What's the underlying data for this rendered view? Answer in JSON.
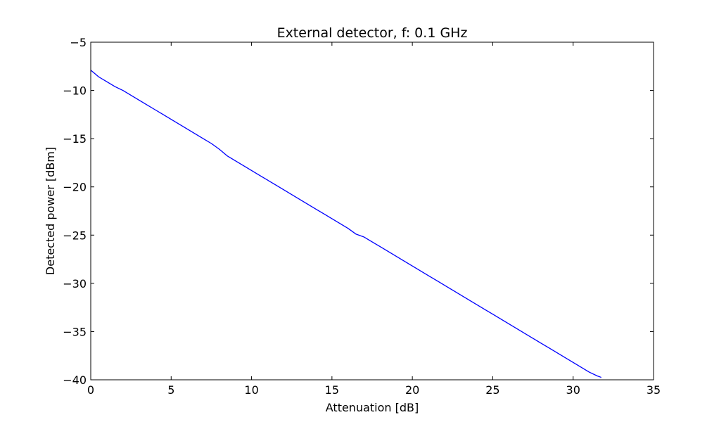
{
  "chart_data": {
    "type": "line",
    "title": "External detector, f: 0.1 GHz",
    "xlabel": "Attenuation [dB]",
    "ylabel": "Detected power [dBm]",
    "xlim": [
      0,
      35
    ],
    "ylim": [
      -40,
      -5
    ],
    "x_ticks": [
      0,
      5,
      10,
      15,
      20,
      25,
      30,
      35
    ],
    "x_tick_labels": [
      "0",
      "5",
      "10",
      "15",
      "20",
      "25",
      "30",
      "35"
    ],
    "y_ticks": [
      -5,
      -10,
      -15,
      -20,
      -25,
      -30,
      -35,
      -40
    ],
    "y_tick_labels": [
      "−5",
      "−10",
      "−15",
      "−20",
      "−25",
      "−30",
      "−35",
      "−40"
    ],
    "grid": false,
    "legend": "none",
    "colors": {
      "line": "#0000ff",
      "axes": "#000000",
      "background": "#ffffff"
    },
    "series": [
      {
        "x": [
          0,
          0.5,
          1,
          1.5,
          2,
          2.5,
          3,
          3.5,
          4,
          4.5,
          5,
          5.5,
          6,
          6.5,
          7,
          7.5,
          8,
          8.5,
          9,
          9.5,
          10,
          10.5,
          11,
          11.5,
          12,
          12.5,
          13,
          13.5,
          14,
          14.5,
          15,
          15.5,
          16,
          16.5,
          17,
          17.5,
          18,
          18.5,
          19,
          19.5,
          20,
          20.5,
          21,
          21.5,
          22,
          22.5,
          23,
          23.5,
          24,
          24.5,
          25,
          25.5,
          26,
          26.5,
          27,
          27.5,
          28,
          28.5,
          29,
          29.5,
          30,
          30.5,
          31,
          31.5,
          31.75
        ],
        "y": [
          -7.9,
          -8.6,
          -9.1,
          -9.6,
          -10.0,
          -10.5,
          -11.0,
          -11.5,
          -12.0,
          -12.5,
          -13.0,
          -13.5,
          -14.0,
          -14.5,
          -15.0,
          -15.5,
          -16.1,
          -16.8,
          -17.3,
          -17.8,
          -18.3,
          -18.8,
          -19.3,
          -19.8,
          -20.3,
          -20.8,
          -21.3,
          -21.8,
          -22.3,
          -22.8,
          -23.3,
          -23.8,
          -24.3,
          -24.9,
          -25.2,
          -25.7,
          -26.2,
          -26.7,
          -27.2,
          -27.7,
          -28.2,
          -28.7,
          -29.2,
          -29.7,
          -30.2,
          -30.7,
          -31.2,
          -31.7,
          -32.2,
          -32.7,
          -33.2,
          -33.7,
          -34.2,
          -34.7,
          -35.2,
          -35.7,
          -36.2,
          -36.7,
          -37.2,
          -37.7,
          -38.2,
          -38.7,
          -39.2,
          -39.6,
          -39.75
        ]
      }
    ]
  }
}
